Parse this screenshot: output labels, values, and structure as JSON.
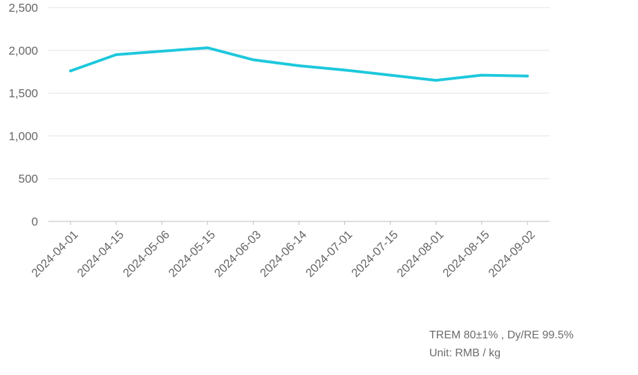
{
  "chart_data": {
    "type": "line",
    "title": "",
    "xlabel": "",
    "ylabel": "",
    "x": [
      "2024-04-01",
      "2024-04-15",
      "2024-05-06",
      "2024-05-15",
      "2024-06-03",
      "2024-06-14",
      "2024-07-01",
      "2024-07-15",
      "2024-08-01",
      "2024-08-15",
      "2024-09-02"
    ],
    "series": [
      {
        "values": [
          1760,
          1950,
          1990,
          2030,
          1890,
          1820,
          1770,
          1710,
          1650,
          1710,
          1700
        ],
        "color": "#1ec8dc"
      }
    ],
    "ylim": [
      0,
      2500
    ],
    "yticks": [
      0,
      500,
      1000,
      1500,
      2000,
      2500
    ],
    "ytick_labels": [
      "0",
      "500",
      "1,000",
      "1,500",
      "2,000",
      "2,500"
    ],
    "grid": true,
    "legend": "none"
  },
  "notes": {
    "spec": "TREM 80±1% , Dy/RE 99.5%",
    "unit": "Unit: RMB / kg"
  }
}
